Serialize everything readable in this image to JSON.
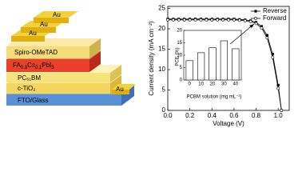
{
  "diagram": {
    "layers": [
      {
        "label": "FTO/Glass"
      },
      {
        "label": "c-TiO₂"
      },
      {
        "label": "PC₆₁BM"
      },
      {
        "label_parts": [
          "FA",
          "0.9",
          "Cs",
          "0.1",
          "PbI",
          "3"
        ]
      },
      {
        "label": "Spiro-OMeTAD"
      }
    ],
    "electrodes": [
      "Au",
      "Au",
      "Au",
      "Au"
    ]
  },
  "chart_data": [
    {
      "type": "line",
      "xlabel": "Voltage (V)",
      "ylabel": "Current density (mA cm⁻²)",
      "x": [
        0,
        0.05,
        0.1,
        0.15,
        0.2,
        0.25,
        0.3,
        0.35,
        0.4,
        0.45,
        0.5,
        0.55,
        0.6,
        0.65,
        0.7,
        0.75,
        0.8,
        0.85,
        0.9,
        0.95,
        1.0,
        1.03
      ],
      "series": [
        {
          "name": "Reverse",
          "color": "#000000",
          "marker": "square",
          "values": [
            22.4,
            22.4,
            22.4,
            22.4,
            22.4,
            22.4,
            22.4,
            22.4,
            22.4,
            22.4,
            22.4,
            22.4,
            22.4,
            22.3,
            22.2,
            22.0,
            21.6,
            20.6,
            18.4,
            13.8,
            6.2,
            0
          ]
        },
        {
          "name": "Forward",
          "color": "#000000",
          "marker": "circle",
          "values": [
            22.2,
            22.2,
            22.2,
            22.2,
            22.2,
            22.2,
            22.2,
            22.2,
            22.2,
            22.2,
            22.2,
            22.2,
            22.2,
            22.1,
            22.0,
            21.8,
            21.3,
            20.2,
            17.8,
            13.0,
            5.4,
            0
          ]
        }
      ],
      "xlim": [
        0,
        1.1
      ],
      "xticks": [
        {
          "value": 0,
          "label": "0.0"
        },
        {
          "value": 0.2,
          "label": "0.2"
        },
        {
          "value": 0.4,
          "label": "0.4"
        },
        {
          "value": 0.6,
          "label": "0.6"
        },
        {
          "value": 0.8,
          "label": "0.8"
        },
        {
          "value": 1.0,
          "label": "1.0"
        }
      ],
      "ylim": [
        0,
        25.5
      ],
      "yticks": [
        0,
        5,
        10,
        15,
        20,
        25
      ],
      "legend": "top-right"
    },
    {
      "type": "bar",
      "xlabel": "PCBM solution (mg mL⁻¹)",
      "ylabel": "PCE (%)",
      "categories": [
        "0",
        "10",
        "20",
        "30",
        "40"
      ],
      "values": [
        7.8,
        11.0,
        13.0,
        15.8,
        12.6
      ],
      "color": "#ffffff",
      "ylim": [
        0,
        20
      ],
      "yticks": [
        0,
        5,
        10,
        15,
        20
      ]
    }
  ]
}
